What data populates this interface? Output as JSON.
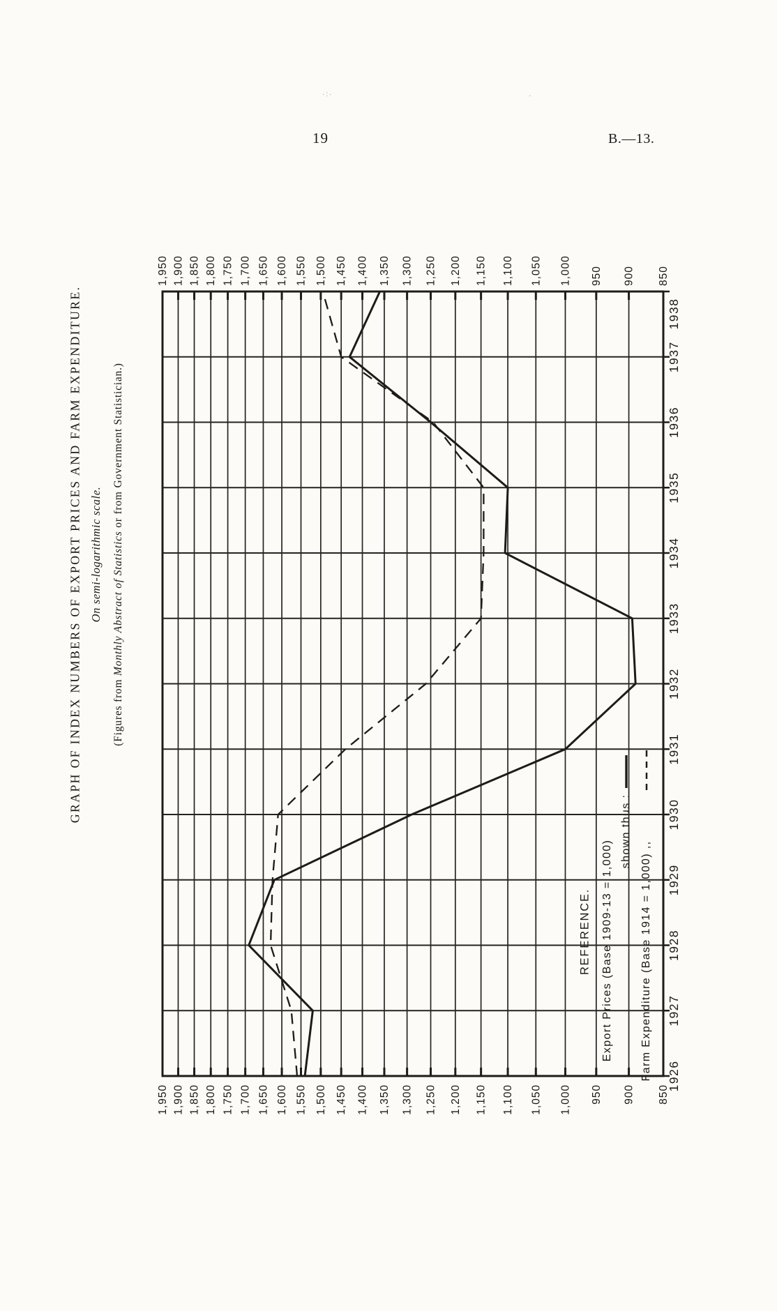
{
  "page": {
    "page_number": "19",
    "doc_ref": "B.—13.",
    "title_line1": "GRAPH OF INDEX NUMBERS OF EXPORT PRICES AND FARM EXPENDITURE.",
    "title_line2": "On semi-logarithmic scale.",
    "figures_prefix": "(Figures from ",
    "figures_italic": "Monthly Abstract of Statistics",
    "figures_suffix": " or from Government Statistician.)"
  },
  "legend": {
    "heading": "REFERENCE.",
    "line1": "Export Prices (Base 1909-13 = 1,000)",
    "line2_text": "shown thus :",
    "line3_text": "Farm Expenditure (Base 1914 = 1,000)  ,,"
  },
  "chart_data": {
    "type": "line",
    "title": "GRAPH OF INDEX NUMBERS OF EXPORT PRICES AND FARM EXPENDITURE.",
    "subtitle": "On semi-logarithmic scale.",
    "source_note": "(Figures from Monthly Abstract of Statistics or from Government Statistician.)",
    "orientation": "page printed sideways: rotate 90° clockwise to read; years run bottom-to-top, index values increase right-to-left on a logarithmic scale",
    "grid": true,
    "axis": {
      "value_scale": "log",
      "value_min": 850,
      "value_max": 1950,
      "value_step": 50,
      "year_min": 1926,
      "year_max": 1938
    },
    "value_ticks": [
      1950,
      1900,
      1850,
      1800,
      1750,
      1700,
      1650,
      1600,
      1550,
      1500,
      1450,
      1400,
      1350,
      1300,
      1250,
      1200,
      1150,
      1100,
      1050,
      1000,
      950,
      900,
      850
    ],
    "value_tick_labels": [
      "1,950",
      "1,900",
      "1,850",
      "1,800",
      "1,750",
      "1,700",
      "1,650",
      "1,600",
      "1,550",
      "1,500",
      "1,450",
      "1,400",
      "1,350",
      "1,300",
      "1,250",
      "1,200",
      "1,150",
      "1,100",
      "1,050",
      "1,000",
      "950",
      "900",
      "850"
    ],
    "x": [
      1926,
      1927,
      1928,
      1929,
      1930,
      1931,
      1932,
      1933,
      1934,
      1935,
      1936,
      1937,
      1938
    ],
    "series": [
      {
        "name": "Export Prices (Base 1909-13 = 1,000)",
        "style": "solid",
        "values": [
          1540,
          1520,
          1690,
          1620,
          1290,
          1000,
          890,
          895,
          1105,
          1100,
          1250,
          1430,
          1360
        ]
      },
      {
        "name": "Farm Expenditure (Base 1914 = 1,000)",
        "style": "dashed",
        "values": [
          1560,
          1575,
          1630,
          1625,
          1610,
          1440,
          1260,
          1150,
          1145,
          1145,
          1245,
          1450,
          1495
        ]
      }
    ],
    "ink_color": "#1e1c17",
    "grid_color": "#262420"
  }
}
